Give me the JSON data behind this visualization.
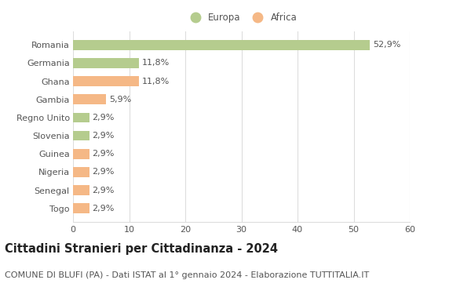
{
  "categories": [
    "Togo",
    "Senegal",
    "Nigeria",
    "Guinea",
    "Slovenia",
    "Regno Unito",
    "Gambia",
    "Ghana",
    "Germania",
    "Romania"
  ],
  "values": [
    2.9,
    2.9,
    2.9,
    2.9,
    2.9,
    2.9,
    5.9,
    11.8,
    11.8,
    52.9
  ],
  "labels": [
    "2,9%",
    "2,9%",
    "2,9%",
    "2,9%",
    "2,9%",
    "2,9%",
    "5,9%",
    "11,8%",
    "11,8%",
    "52,9%"
  ],
  "continents": [
    "Africa",
    "Africa",
    "Africa",
    "Africa",
    "Europa",
    "Europa",
    "Africa",
    "Africa",
    "Europa",
    "Europa"
  ],
  "color_europa": "#b5cc8e",
  "color_africa": "#f5b886",
  "legend_europa": "Europa",
  "legend_africa": "Africa",
  "title": "Cittadini Stranieri per Cittadinanza - 2024",
  "subtitle": "COMUNE DI BLUFI (PA) - Dati ISTAT al 1° gennaio 2024 - Elaborazione TUTTITALIA.IT",
  "xlim": [
    0,
    60
  ],
  "xticks": [
    0,
    10,
    20,
    30,
    40,
    50,
    60
  ],
  "bg_color": "#ffffff",
  "grid_color": "#dddddd",
  "bar_height": 0.55,
  "label_fontsize": 8,
  "title_fontsize": 10.5,
  "subtitle_fontsize": 8,
  "tick_fontsize": 8,
  "text_color": "#555555",
  "title_color": "#222222"
}
